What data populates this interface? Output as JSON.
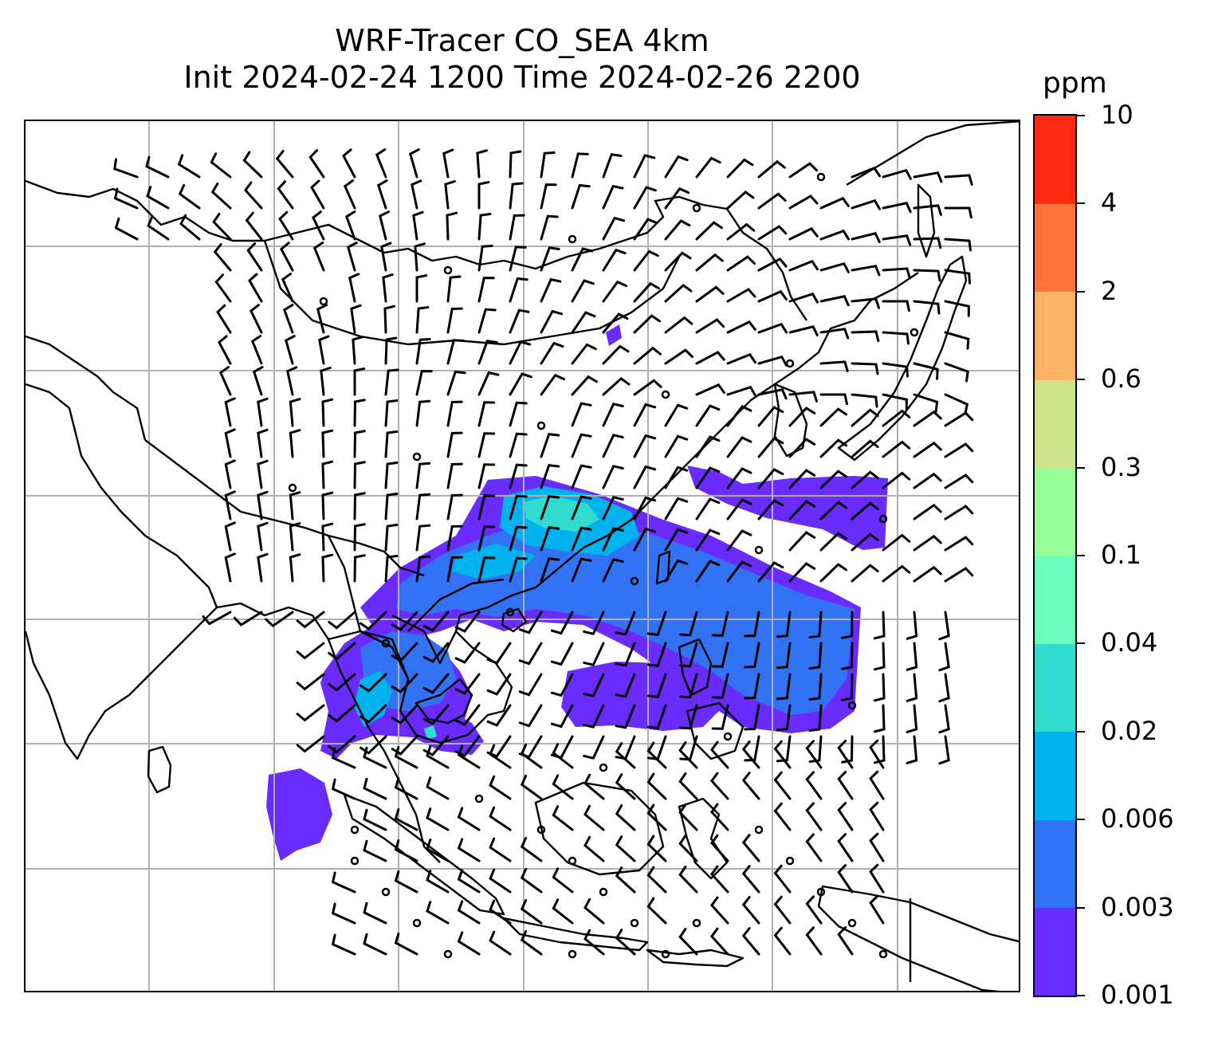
{
  "title": {
    "line1": "WRF-Tracer CO_SEA 4km",
    "line2": "Init 2024-02-24 1200 Time 2024-02-26 2200"
  },
  "colorbar": {
    "unit": "ppm",
    "levels": [
      "0.001",
      "0.003",
      "0.006",
      "0.02",
      "0.04",
      "0.1",
      "0.3",
      "0.6",
      "2",
      "4",
      "10"
    ],
    "colors": [
      "#6a2bff",
      "#3273f5",
      "#00b3ee",
      "#31dccf",
      "#6cffbe",
      "#98ff98",
      "#cfe38a",
      "#fdb265",
      "#ff733b",
      "#ff2a12"
    ]
  },
  "map": {
    "grid": true,
    "plume_colors": {
      "low": "#6a2bff",
      "mid": "#3273f5",
      "high": "#00b3ee",
      "peak": "#31dccf"
    }
  }
}
